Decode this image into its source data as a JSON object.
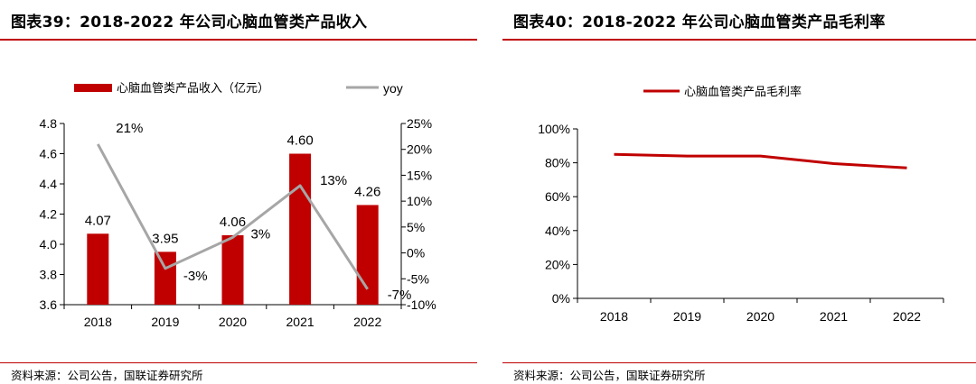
{
  "chart_data": [
    {
      "type": "bar",
      "title": "图表39：2018-2022 年公司心脑血管类产品收入",
      "source": "资料来源：公司公告，国联证券研究所",
      "categories": [
        "2018",
        "2019",
        "2020",
        "2021",
        "2022"
      ],
      "series": [
        {
          "name": "心脑血管类产品收入（亿元）",
          "type": "bar",
          "axis": "left",
          "values": [
            4.07,
            3.95,
            4.06,
            4.6,
            4.26
          ],
          "labels": [
            "4.07",
            "3.95",
            "4.06",
            "4.60",
            "4.26"
          ],
          "color": "#c00000"
        },
        {
          "name": "yoy",
          "type": "line",
          "axis": "right",
          "values": [
            21,
            -3,
            3,
            13,
            -7
          ],
          "labels": [
            "21%",
            "-3%",
            "3%",
            "13%",
            "-7%"
          ],
          "color": "#a6a6a6"
        }
      ],
      "ylim": [
        3.6,
        4.8
      ],
      "yticks": [
        "3.6",
        "3.8",
        "4.0",
        "4.2",
        "4.4",
        "4.6",
        "4.8"
      ],
      "y2lim": [
        -10,
        25
      ],
      "y2ticks": [
        "-10%",
        "-5%",
        "0%",
        "5%",
        "10%",
        "15%",
        "20%",
        "25%"
      ],
      "legend": "top",
      "grid": false
    },
    {
      "type": "line",
      "title": "图表40：2018-2022 年公司心脑血管类产品毛利率",
      "source": "资料来源：公司公告，国联证券研究所",
      "categories": [
        "2018",
        "2019",
        "2020",
        "2021",
        "2022"
      ],
      "series": [
        {
          "name": "心脑血管类产品毛利率",
          "values": [
            85,
            84,
            84,
            79.5,
            77
          ],
          "color": "#c00000"
        }
      ],
      "ylim": [
        0,
        100
      ],
      "yticks": [
        "0%",
        "20%",
        "40%",
        "60%",
        "80%",
        "100%"
      ],
      "legend": "top",
      "grid": false
    }
  ]
}
